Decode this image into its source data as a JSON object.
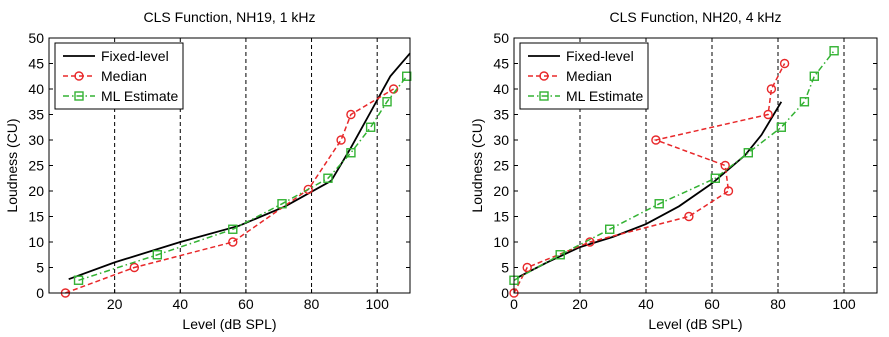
{
  "chart_data": [
    {
      "type": "line",
      "title": "CLS Function, NH19, 1 kHz",
      "xlabel": "Level (dB SPL)",
      "ylabel": "Loudness (CU)",
      "xlim": [
        0,
        110
      ],
      "ylim": [
        0,
        50
      ],
      "xticks": [
        "20",
        "40",
        "60",
        "80",
        "100"
      ],
      "yticks": [
        "0",
        "5",
        "10",
        "15",
        "20",
        "25",
        "30",
        "35",
        "40",
        "45",
        "50"
      ],
      "vlines": [
        20,
        40,
        60,
        80,
        100
      ],
      "legend_position": "top-left",
      "series": [
        {
          "name": "Fixed-level",
          "color": "#000000",
          "style": "solid",
          "marker": "none",
          "x": [
            6,
            20,
            40,
            58,
            72,
            86,
            92,
            98,
            104,
            110
          ],
          "y": [
            2.7,
            6,
            10,
            13.2,
            17,
            22,
            28.5,
            35.5,
            42.5,
            47
          ]
        },
        {
          "name": "Median",
          "color": "#e8282a",
          "style": "dashed",
          "marker": "circle",
          "x": [
            5,
            26,
            56,
            79,
            89,
            92,
            105
          ],
          "y": [
            0,
            5,
            10,
            20.3,
            30,
            35,
            40
          ]
        },
        {
          "name": "ML Estimate",
          "color": "#33b233",
          "style": "dashdot",
          "marker": "square",
          "x": [
            9,
            33,
            56,
            71,
            85,
            92,
            98,
            103,
            109
          ],
          "y": [
            2.5,
            7.5,
            12.5,
            17.5,
            22.5,
            27.5,
            32.5,
            37.5,
            42.5
          ]
        }
      ]
    },
    {
      "type": "line",
      "title": "CLS Function, NH20, 4 kHz",
      "xlabel": "Level (dB SPL)",
      "ylabel": "Loudness (CU)",
      "xlim": [
        0,
        110
      ],
      "ylim": [
        0,
        50
      ],
      "xticks": [
        "0",
        "20",
        "40",
        "60",
        "80",
        "100"
      ],
      "yticks": [
        "0",
        "5",
        "10",
        "15",
        "20",
        "25",
        "30",
        "35",
        "40",
        "45",
        "50"
      ],
      "vlines": [
        20,
        40,
        60,
        80,
        100
      ],
      "legend_position": "top-left",
      "series": [
        {
          "name": "Fixed-level",
          "color": "#000000",
          "style": "solid",
          "marker": "none",
          "x": [
            1,
            10,
            20,
            30,
            40,
            50,
            60,
            70,
            75,
            81
          ],
          "y": [
            3,
            6,
            9,
            11,
            13.5,
            17,
            21.5,
            27,
            31,
            37.5
          ]
        },
        {
          "name": "Median",
          "color": "#e8282a",
          "style": "dashed",
          "marker": "circle",
          "x": [
            0,
            4,
            23,
            53,
            65,
            64,
            43,
            77,
            78,
            82
          ],
          "y": [
            0,
            5,
            10,
            15,
            20,
            25,
            30,
            35,
            40,
            45
          ]
        },
        {
          "name": "ML Estimate",
          "color": "#33b233",
          "style": "dashdot",
          "marker": "square",
          "x": [
            0,
            14,
            29,
            44,
            61,
            71,
            81,
            88,
            91,
            97
          ],
          "y": [
            2.5,
            7.5,
            12.5,
            17.5,
            22.5,
            27.5,
            32.5,
            37.5,
            42.5,
            47.5
          ]
        }
      ]
    }
  ]
}
